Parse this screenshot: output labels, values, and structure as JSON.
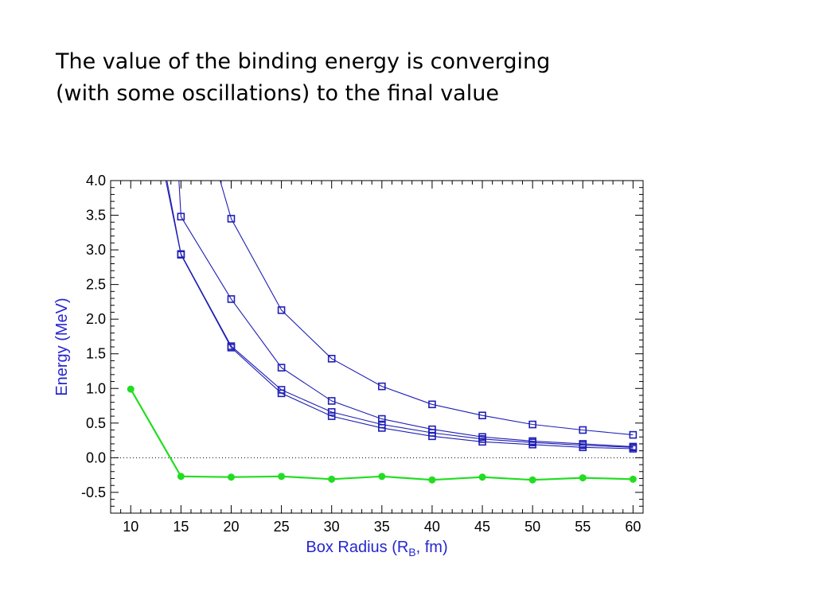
{
  "slide": {
    "title_line1": "The value of the binding energy is converging",
    "title_line2": "(with some oscillations) to the final value"
  },
  "colors": {
    "blue": "#1f1fb4",
    "green": "#22dd22",
    "axis_label": "#2626d0"
  },
  "chart_data": {
    "type": "line",
    "xlabel": "Box Radius (R",
    "xlabel_sub": "B",
    "xlabel_tail": ", fm)",
    "ylabel": "Energy (MeV)",
    "xlim": [
      8,
      61
    ],
    "ylim": [
      -0.8,
      4.0
    ],
    "x_ticks": [
      10,
      15,
      20,
      25,
      30,
      35,
      40,
      45,
      50,
      55,
      60
    ],
    "y_ticks": [
      -0.5,
      0.0,
      0.5,
      1.0,
      1.5,
      2.0,
      2.5,
      3.0,
      3.5,
      4.0
    ],
    "y_tick_labels": [
      "-0.5",
      "0.0",
      "0.5",
      "1.0",
      "1.5",
      "2.0",
      "2.5",
      "3.0",
      "3.5",
      "4.0"
    ],
    "zero_line": "dotted",
    "grid": false,
    "series": [
      {
        "color": "#1f1fb4",
        "marker": "square",
        "x": [
          20,
          25,
          30,
          35,
          40,
          45,
          50,
          55,
          60
        ],
        "y": [
          3.45,
          2.13,
          1.43,
          1.03,
          0.77,
          0.61,
          0.48,
          0.4,
          0.33
        ],
        "lead_in": [
          [
            17.5,
            4.6
          ],
          [
            18.9,
            4.0
          ]
        ]
      },
      {
        "color": "#1f1fb4",
        "marker": "square",
        "x": [
          15,
          20,
          25,
          30,
          35,
          40,
          45,
          50,
          55,
          60
        ],
        "y": [
          3.48,
          2.29,
          1.3,
          0.82,
          0.56,
          0.41,
          0.3,
          0.24,
          0.2,
          0.16
        ],
        "lead_in": [
          [
            14.0,
            4.6
          ],
          [
            14.8,
            4.0
          ]
        ]
      },
      {
        "color": "#1f1fb4",
        "marker": "square",
        "x": [
          15,
          20,
          25,
          30,
          35,
          40,
          45,
          50,
          55,
          60
        ],
        "y": [
          2.94,
          1.61,
          0.98,
          0.66,
          0.48,
          0.36,
          0.27,
          0.22,
          0.18,
          0.15
        ],
        "lead_in": [
          [
            13.0,
            4.6
          ],
          [
            13.6,
            4.0
          ]
        ]
      },
      {
        "color": "#1f1fb4",
        "marker": "square",
        "x": [
          15,
          20,
          25,
          30,
          35,
          40,
          45,
          50,
          55,
          60
        ],
        "y": [
          2.93,
          1.59,
          0.93,
          0.6,
          0.43,
          0.31,
          0.23,
          0.19,
          0.15,
          0.13
        ],
        "lead_in": [
          [
            12.9,
            4.6
          ],
          [
            13.5,
            4.0
          ]
        ]
      },
      {
        "color": "#22dd22",
        "marker": "circle",
        "x": [
          10,
          15,
          20,
          25,
          30,
          35,
          40,
          45,
          50,
          55,
          60
        ],
        "y": [
          0.99,
          -0.27,
          -0.28,
          -0.27,
          -0.31,
          -0.27,
          -0.32,
          -0.28,
          -0.32,
          -0.29,
          -0.31
        ],
        "lead_in": []
      }
    ]
  }
}
